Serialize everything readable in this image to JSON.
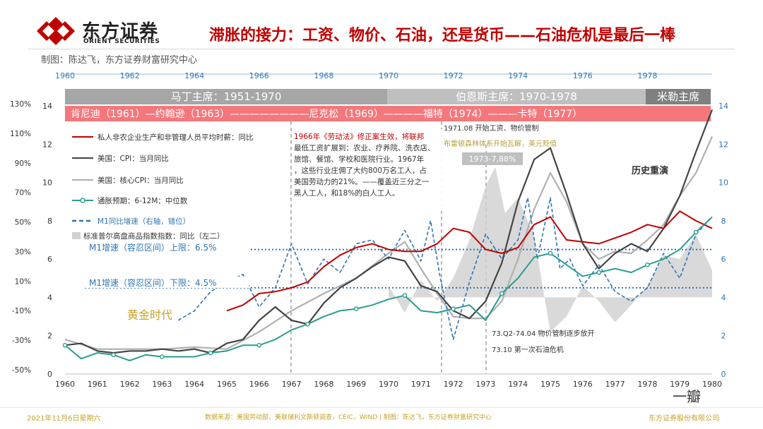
{
  "header": {
    "logo_cn": "东方证券",
    "logo_en": "ORIENT SECURITIES",
    "title": "滞胀的接力：工资、物价、石油，还是货币——石油危机是最后一棒",
    "credit": "制图：陈达飞，东方证券财富研究中心"
  },
  "footer": {
    "date": "2021年11月6日星期六",
    "source": "数据来源：美国劳动部，美联储利文斯顿调查，CEIC，WIND | 制图：陈达飞，东方证券财富研究中心",
    "company": "东方证券股份有限公司",
    "watermark": "一瓣"
  },
  "colors": {
    "brand": "#c00000",
    "wage": "#c00000",
    "cpi": "#444444",
    "core": "#b0b0b0",
    "expect": "#2a9d8f",
    "m1": "#2e75b6",
    "sp": "#d0d0d0"
  },
  "chart_data": {
    "type": "line",
    "title": "滞胀的接力：工资、物价、石油，还是货币——石油危机是最后一棒",
    "top_axis_ticks": [
      "1960",
      "1962",
      "1964",
      "1966",
      "1968",
      "1970",
      "1972",
      "1974",
      "1976",
      "1978"
    ],
    "x_ticks": [
      "1960",
      "1961",
      "1962",
      "1963",
      "1964",
      "1965",
      "1966",
      "1967",
      "1968",
      "1969",
      "1970",
      "1971",
      "1972",
      "1973",
      "1974",
      "1975",
      "1976",
      "1977",
      "1978",
      "1979",
      "1980"
    ],
    "left_outer_ticks": [
      "130%",
      "110%",
      "90%",
      "70%",
      "50%",
      "30%",
      "10%",
      "-10%",
      "-30%",
      "-50%"
    ],
    "left_ticks": [
      "14",
      "12",
      "10",
      "8",
      "6",
      "4",
      "2",
      "0"
    ],
    "right_ticks": [
      "14",
      "12",
      "10",
      "8",
      "6",
      "4",
      "2",
      "0"
    ],
    "ylim_left": [
      0,
      14
    ],
    "ylim_right": [
      0,
      14
    ],
    "bands": {
      "fed_chairs": [
        {
          "label": "马丁主席：1951-1970"
        },
        {
          "label": "伯恩斯主席：1970-1978"
        },
        {
          "label": "米勒主席"
        }
      ],
      "presidents": "肯尼迪（1961）—约翰逊（1963）————————尼克松（1969）————福特（1974）———卡特（1977）"
    },
    "legend": [
      "私人非农企业生产和非管理人员平均时薪：同比",
      "美国：CPI：当月同比",
      "美国：核心CPI：当月同比",
      "通胀预期：6-12M：中位数",
      "M1同比增速（右轴，错位）",
      "标准普尔高盘商品指数指数：同比（左二）"
    ],
    "reference_lines": [
      {
        "label": "M1增速（容忍区间）上限：6.5%",
        "value": 6.5
      },
      {
        "label": "M1增速（容忍区间）下限：4.5%",
        "value": 4.5
      }
    ],
    "annotations": {
      "labor_act": "1966年《劳动法》修正案生效，将联邦最低工资扩展到：农业、疗养院、洗衣店、旅馆、餐馆、学校和医院行业。1967年，这些行业庄佣了大约800万名工人，占美国劳动力的21%。——覆盖近三分之一黑人工人，和18%的白人工人。",
      "wage_freeze": "1971.08 开始工资、物价管制",
      "bretton_woods": "布雷顿森林体系开始瓦解，美元贬值",
      "peak_1973": "1973-7,88%",
      "history": "历史重演",
      "golden_age": "黄金时代",
      "decontrol": "73.Q2-74.04 物价管制逐步放开",
      "oil_crisis": "73.10 第一次石油危机"
    },
    "series": [
      {
        "name": "私人非农企业生产和非管理人员平均时薪：同比",
        "x": [
          1965.0,
          1965.5,
          1966.0,
          1966.5,
          1967.0,
          1967.5,
          1968.0,
          1968.5,
          1969.0,
          1969.5,
          1970.0,
          1970.5,
          1971.0,
          1971.5,
          1972.0,
          1972.5,
          1973.0,
          1973.5,
          1974.0,
          1974.5,
          1975.0,
          1975.5,
          1976.0,
          1976.5,
          1977.0,
          1977.5,
          1978.0,
          1978.5,
          1979.0,
          1979.5,
          1980.0
        ],
        "values": [
          3.3,
          3.6,
          4.2,
          4.3,
          4.5,
          4.8,
          5.6,
          6.2,
          6.6,
          6.8,
          6.5,
          6.4,
          6.4,
          6.8,
          7.6,
          7.4,
          6.5,
          6.3,
          6.6,
          7.8,
          8.2,
          7.0,
          6.9,
          6.8,
          7.1,
          7.4,
          7.8,
          7.6,
          8.5,
          8.0,
          7.6
        ]
      },
      {
        "name": "美国：CPI：当月同比",
        "x": [
          1960.0,
          1960.5,
          1961.0,
          1961.5,
          1962.0,
          1962.5,
          1963.0,
          1963.5,
          1964.0,
          1964.5,
          1965.0,
          1965.5,
          1966.0,
          1966.5,
          1967.0,
          1967.5,
          1968.0,
          1968.5,
          1969.0,
          1969.5,
          1970.0,
          1970.5,
          1971.0,
          1971.5,
          1972.0,
          1972.5,
          1973.0,
          1973.5,
          1974.0,
          1974.5,
          1975.0,
          1975.5,
          1976.0,
          1976.5,
          1977.0,
          1977.5,
          1978.0,
          1978.5,
          1979.0,
          1979.5,
          1980.0
        ],
        "values": [
          1.5,
          1.6,
          1.2,
          1.1,
          1.2,
          1.2,
          1.3,
          1.2,
          1.3,
          1.1,
          1.6,
          1.8,
          2.8,
          3.5,
          2.8,
          2.6,
          3.7,
          4.5,
          5.0,
          5.6,
          6.1,
          5.9,
          4.6,
          4.3,
          3.3,
          2.9,
          3.8,
          5.8,
          9.0,
          11.2,
          11.8,
          9.4,
          6.8,
          5.5,
          6.3,
          6.8,
          6.4,
          7.6,
          9.3,
          11.6,
          13.8
        ]
      },
      {
        "name": "美国：核心CPI：当月同比",
        "x": [
          1960.0,
          1961.0,
          1962.0,
          1963.0,
          1964.0,
          1965.0,
          1966.0,
          1967.0,
          1968.0,
          1969.0,
          1970.0,
          1970.5,
          1971.0,
          1971.5,
          1972.0,
          1972.5,
          1973.0,
          1973.5,
          1974.0,
          1974.5,
          1975.0,
          1975.5,
          1976.0,
          1976.5,
          1977.0,
          1977.5,
          1978.0,
          1978.5,
          1979.0,
          1979.5,
          1980.0
        ],
        "values": [
          1.8,
          1.3,
          1.3,
          1.3,
          1.4,
          1.3,
          2.2,
          3.3,
          4.2,
          5.0,
          6.3,
          6.9,
          5.5,
          4.2,
          3.0,
          2.9,
          2.9,
          3.8,
          6.0,
          8.6,
          10.5,
          9.0,
          6.8,
          6.0,
          6.4,
          6.3,
          7.0,
          7.8,
          9.3,
          10.5,
          12.4
        ]
      },
      {
        "name": "通胀预期：6-12M：中位数",
        "x": [
          1960.0,
          1960.5,
          1961.0,
          1961.5,
          1962.0,
          1962.5,
          1963.0,
          1963.5,
          1964.0,
          1964.5,
          1965.0,
          1965.5,
          1966.0,
          1966.5,
          1967.0,
          1967.5,
          1968.0,
          1968.5,
          1969.0,
          1969.5,
          1970.0,
          1970.5,
          1971.0,
          1971.5,
          1972.0,
          1972.5,
          1973.0,
          1973.5,
          1974.0,
          1974.5,
          1975.0,
          1975.5,
          1976.0,
          1976.5,
          1977.0,
          1977.5,
          1978.0,
          1978.5,
          1979.0,
          1979.5,
          1980.0
        ],
        "values": [
          1.5,
          0.8,
          1.1,
          1.0,
          0.7,
          1.0,
          0.9,
          0.9,
          0.9,
          1.1,
          1.2,
          1.5,
          1.5,
          1.8,
          2.3,
          2.6,
          3.0,
          3.3,
          3.4,
          3.6,
          3.9,
          4.1,
          3.3,
          3.2,
          3.4,
          3.6,
          2.8,
          4.2,
          5.0,
          6.1,
          6.3,
          5.7,
          5.1,
          5.3,
          5.5,
          5.3,
          5.7,
          6.0,
          6.5,
          7.4,
          8.2
        ]
      },
      {
        "name": "M1同比增速（右轴，错位）",
        "x": [
          1963.5,
          1964.0,
          1964.5,
          1965.0,
          1965.5,
          1966.0,
          1966.5,
          1967.0,
          1967.5,
          1968.0,
          1968.5,
          1969.0,
          1969.5,
          1970.0,
          1970.5,
          1971.0,
          1971.3,
          1971.6,
          1972.0,
          1972.5,
          1973.0,
          1973.5,
          1974.0,
          1974.3,
          1974.6,
          1975.0,
          1975.3,
          1975.6,
          1976.0,
          1976.5,
          1977.0,
          1977.5,
          1978.0,
          1978.5,
          1979.0,
          1979.5,
          1980.0
        ],
        "values": [
          2.8,
          3.3,
          4.3,
          4.8,
          5.2,
          3.5,
          4.5,
          6.8,
          4.7,
          6.0,
          5.3,
          6.8,
          7.0,
          6.0,
          7.5,
          5.9,
          8.0,
          5.0,
          1.8,
          4.8,
          7.3,
          6.0,
          7.0,
          9.2,
          6.0,
          9.2,
          5.5,
          6.0,
          4.6,
          5.7,
          4.3,
          3.8,
          4.5,
          6.3,
          5.0,
          7.3,
          8.2
        ]
      },
      {
        "name": "标准普尔高盘商品指数指数：同比（左二）",
        "x": [
          1970.0,
          1970.5,
          1971.0,
          1971.5,
          1972.0,
          1972.5,
          1973.0,
          1973.3,
          1973.6,
          1974.0,
          1974.5,
          1975.0,
          1975.5,
          1976.0,
          1976.5,
          1977.0,
          1977.5,
          1978.0,
          1978.5,
          1979.0,
          1979.5,
          1980.0
        ],
        "values": [
          4.6,
          3.2,
          4.9,
          3.8,
          5.0,
          7.0,
          9.8,
          10.8,
          8.4,
          9.2,
          7.2,
          2.2,
          3.0,
          4.6,
          3.8,
          2.7,
          3.6,
          4.6,
          6.2,
          6.0,
          7.3,
          5.4
        ]
      }
    ]
  }
}
